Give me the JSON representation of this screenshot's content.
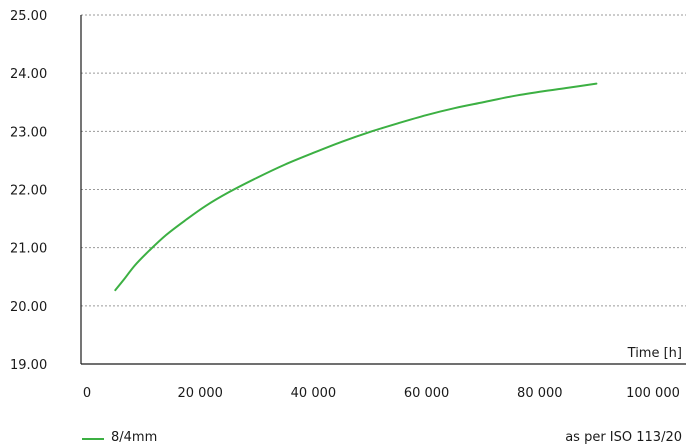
{
  "chart_data": {
    "type": "line",
    "xlabel": "Time [h]",
    "ylabel": "",
    "xlim": [
      0,
      100000
    ],
    "ylim": [
      19,
      25
    ],
    "x_ticks": [
      0,
      20000,
      40000,
      60000,
      80000,
      100000
    ],
    "x_tick_labels": [
      "0",
      "20 000",
      "40 000",
      "60 000",
      "80 000",
      "100 000"
    ],
    "y_ticks": [
      19,
      20,
      21,
      22,
      23,
      24,
      25
    ],
    "y_tick_labels": [
      "19.00",
      "20.00",
      "21.00",
      "22.00",
      "23.00",
      "24.00",
      "25.00"
    ],
    "grid": "horizontal-dotted",
    "legend_position": "bottom-left",
    "note": "as per ISO 113/20",
    "series": [
      {
        "name": "8/4mm",
        "color": "#3cb043",
        "x": [
          5000,
          6500,
          8500,
          11000,
          14000,
          17500,
          21000,
          25000,
          30000,
          35000,
          40000,
          45000,
          50000,
          55000,
          60000,
          65000,
          70000,
          75000,
          80000,
          85000,
          90000
        ],
        "y": [
          20.27,
          20.45,
          20.7,
          20.95,
          21.22,
          21.48,
          21.72,
          21.95,
          22.2,
          22.43,
          22.63,
          22.82,
          22.99,
          23.14,
          23.28,
          23.4,
          23.5,
          23.6,
          23.68,
          23.75,
          23.82
        ]
      }
    ]
  }
}
